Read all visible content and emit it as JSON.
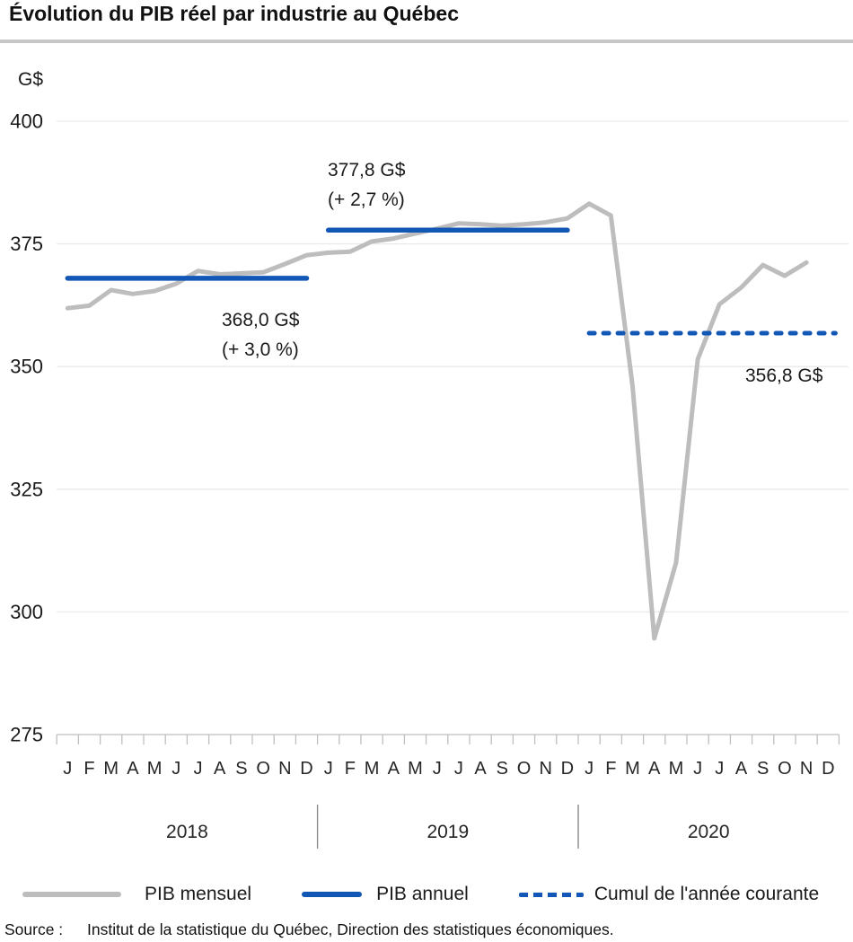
{
  "title": "Évolution du PIB réel par industrie au Québec",
  "colors": {
    "accent_blue": "#1257b5",
    "line_gray": "#bdbdbd",
    "grid_gray": "#e9e9e9",
    "axis_gray": "#bfbfbf",
    "separator_gray": "#8a8a8a",
    "text_dark": "#1a1a1a"
  },
  "legend": {
    "monthly_label": "PIB mensuel",
    "annual_label": "PIB annuel",
    "cumul_label": "Cumul de l'année courante"
  },
  "source": {
    "label": "Source :",
    "text": "Institut de la statistique du Québec, Direction des statistiques économiques."
  },
  "chart_data": {
    "type": "line",
    "title": "Évolution du PIB réel par industrie au Québec",
    "ylabel": "G$",
    "xlabel": "",
    "ylim": [
      275,
      408
    ],
    "yticks": [
      400,
      375,
      350,
      325,
      300,
      275
    ],
    "grid": "horizontal",
    "legend_position": "bottom",
    "month_letters": [
      "J",
      "F",
      "M",
      "A",
      "M",
      "J",
      "J",
      "A",
      "S",
      "O",
      "N",
      "D"
    ],
    "years": [
      "2018",
      "2019",
      "2020"
    ],
    "series": [
      {
        "name": "PIB mensuel",
        "style": "solid",
        "color": "#bdbdbd",
        "x_range": "Janvier 2018 à Novembre 2020",
        "values": [
          361.9,
          362.4,
          365.6,
          364.8,
          365.4,
          366.9,
          369.5,
          368.8,
          369.0,
          369.2,
          370.9,
          372.7,
          373.2,
          373.4,
          375.5,
          376.1,
          377.1,
          378.1,
          379.2,
          379.0,
          378.7,
          379.0,
          379.4,
          380.2,
          383.2,
          380.8,
          346.0,
          294.6,
          310.0,
          351.5,
          362.7,
          366.1,
          370.7,
          368.5,
          371.2,
          null
        ]
      },
      {
        "name": "PIB annuel",
        "style": "solid",
        "color": "#1257b5",
        "segments": [
          {
            "year": "2018",
            "value": 368.0,
            "label": "368,0  G$",
            "change": "(+ 3,0 %)"
          },
          {
            "year": "2019",
            "value": 377.8,
            "label": "377,8 G$",
            "change": "(+ 2,7 %)"
          }
        ]
      },
      {
        "name": "Cumul de l'année courante",
        "style": "dashed",
        "color": "#1257b5",
        "segments": [
          {
            "year": "2020",
            "value": 356.8,
            "label": "356,8 G$"
          }
        ]
      }
    ]
  }
}
